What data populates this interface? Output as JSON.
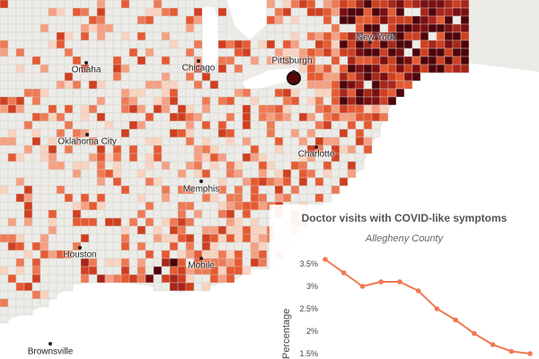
{
  "map": {
    "palette": [
      "#f9d3c0",
      "#f5a083",
      "#ee7a55",
      "#e65a33",
      "#cf3f20",
      "#a8251a",
      "#7a0e10",
      "#4e040a"
    ],
    "water_color": "#ffffff",
    "land_color": "#ecebe7",
    "border_color": "#cfcdc8",
    "cities": [
      {
        "id": "omaha",
        "label": "Omaha"
      },
      {
        "id": "chicago",
        "label": "Chicago"
      },
      {
        "id": "pittsburgh",
        "label": "Pittsburgh"
      },
      {
        "id": "new-york",
        "label": "New York"
      },
      {
        "id": "oklahoma-city",
        "label": "Oklahoma City"
      },
      {
        "id": "charlotte",
        "label": "Charlotte"
      },
      {
        "id": "memphis",
        "label": "Memphis"
      },
      {
        "id": "houston",
        "label": "Houston"
      },
      {
        "id": "mobile",
        "label": "Mobile"
      },
      {
        "id": "brownsville",
        "label": "Brownsville"
      }
    ]
  },
  "chart": {
    "title": "Doctor visits with COVID-like symptoms",
    "subtitle": "Allegheny County",
    "ylabel": "Percentage",
    "line_color": "#ee7a55",
    "chart_data": {
      "type": "line",
      "title": "Doctor visits with COVID-like symptoms",
      "subtitle": "Allegheny County",
      "xlabel": "",
      "ylabel": "Percentage",
      "y_ticks": [
        "1.5%",
        "2%",
        "2.5%",
        "3%",
        "3.5%"
      ],
      "ylim": [
        1.5,
        3.7
      ],
      "grid": false,
      "series": [
        {
          "values": [
            3.6,
            3.3,
            3.0,
            3.1,
            3.1,
            2.9,
            2.5,
            2.25,
            1.95,
            1.7,
            1.55,
            1.5
          ]
        }
      ]
    }
  }
}
